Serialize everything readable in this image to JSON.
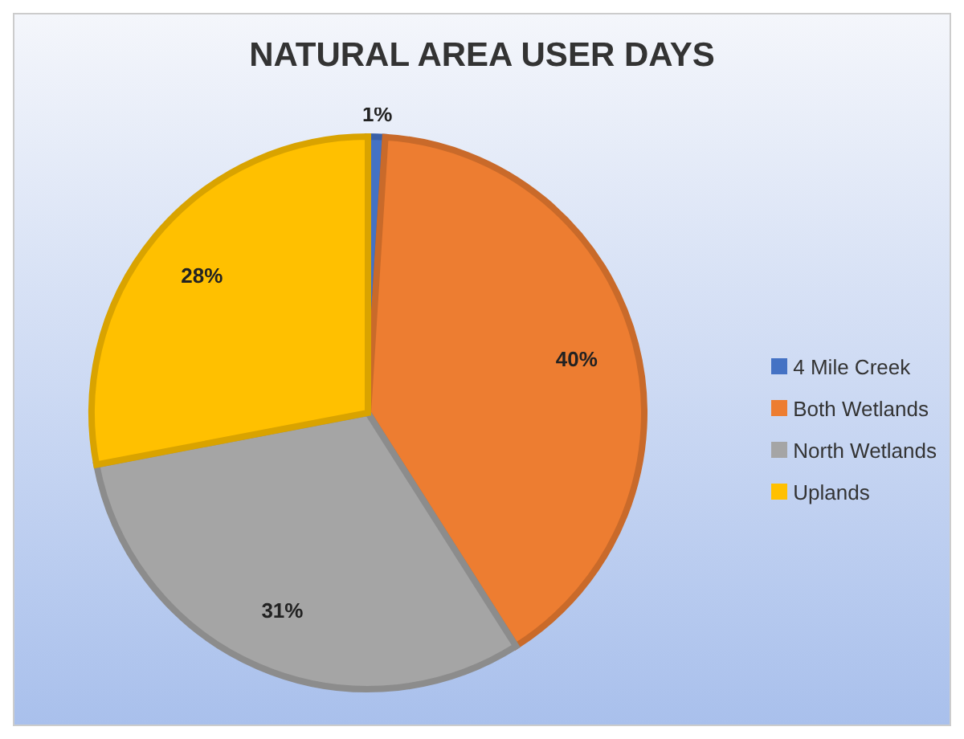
{
  "chart_data": {
    "type": "pie",
    "title": "NATURAL AREA USER DAYS",
    "categories": [
      "4 Mile Creek",
      "Both Wetlands",
      "North Wetlands",
      "Uplands"
    ],
    "values": [
      1,
      40,
      31,
      28
    ],
    "colors": [
      "#4472c4",
      "#ed7d31",
      "#a5a5a5",
      "#ffc000"
    ],
    "value_labels": [
      "1%",
      "40%",
      "31%",
      "28%"
    ],
    "legend": "right"
  }
}
